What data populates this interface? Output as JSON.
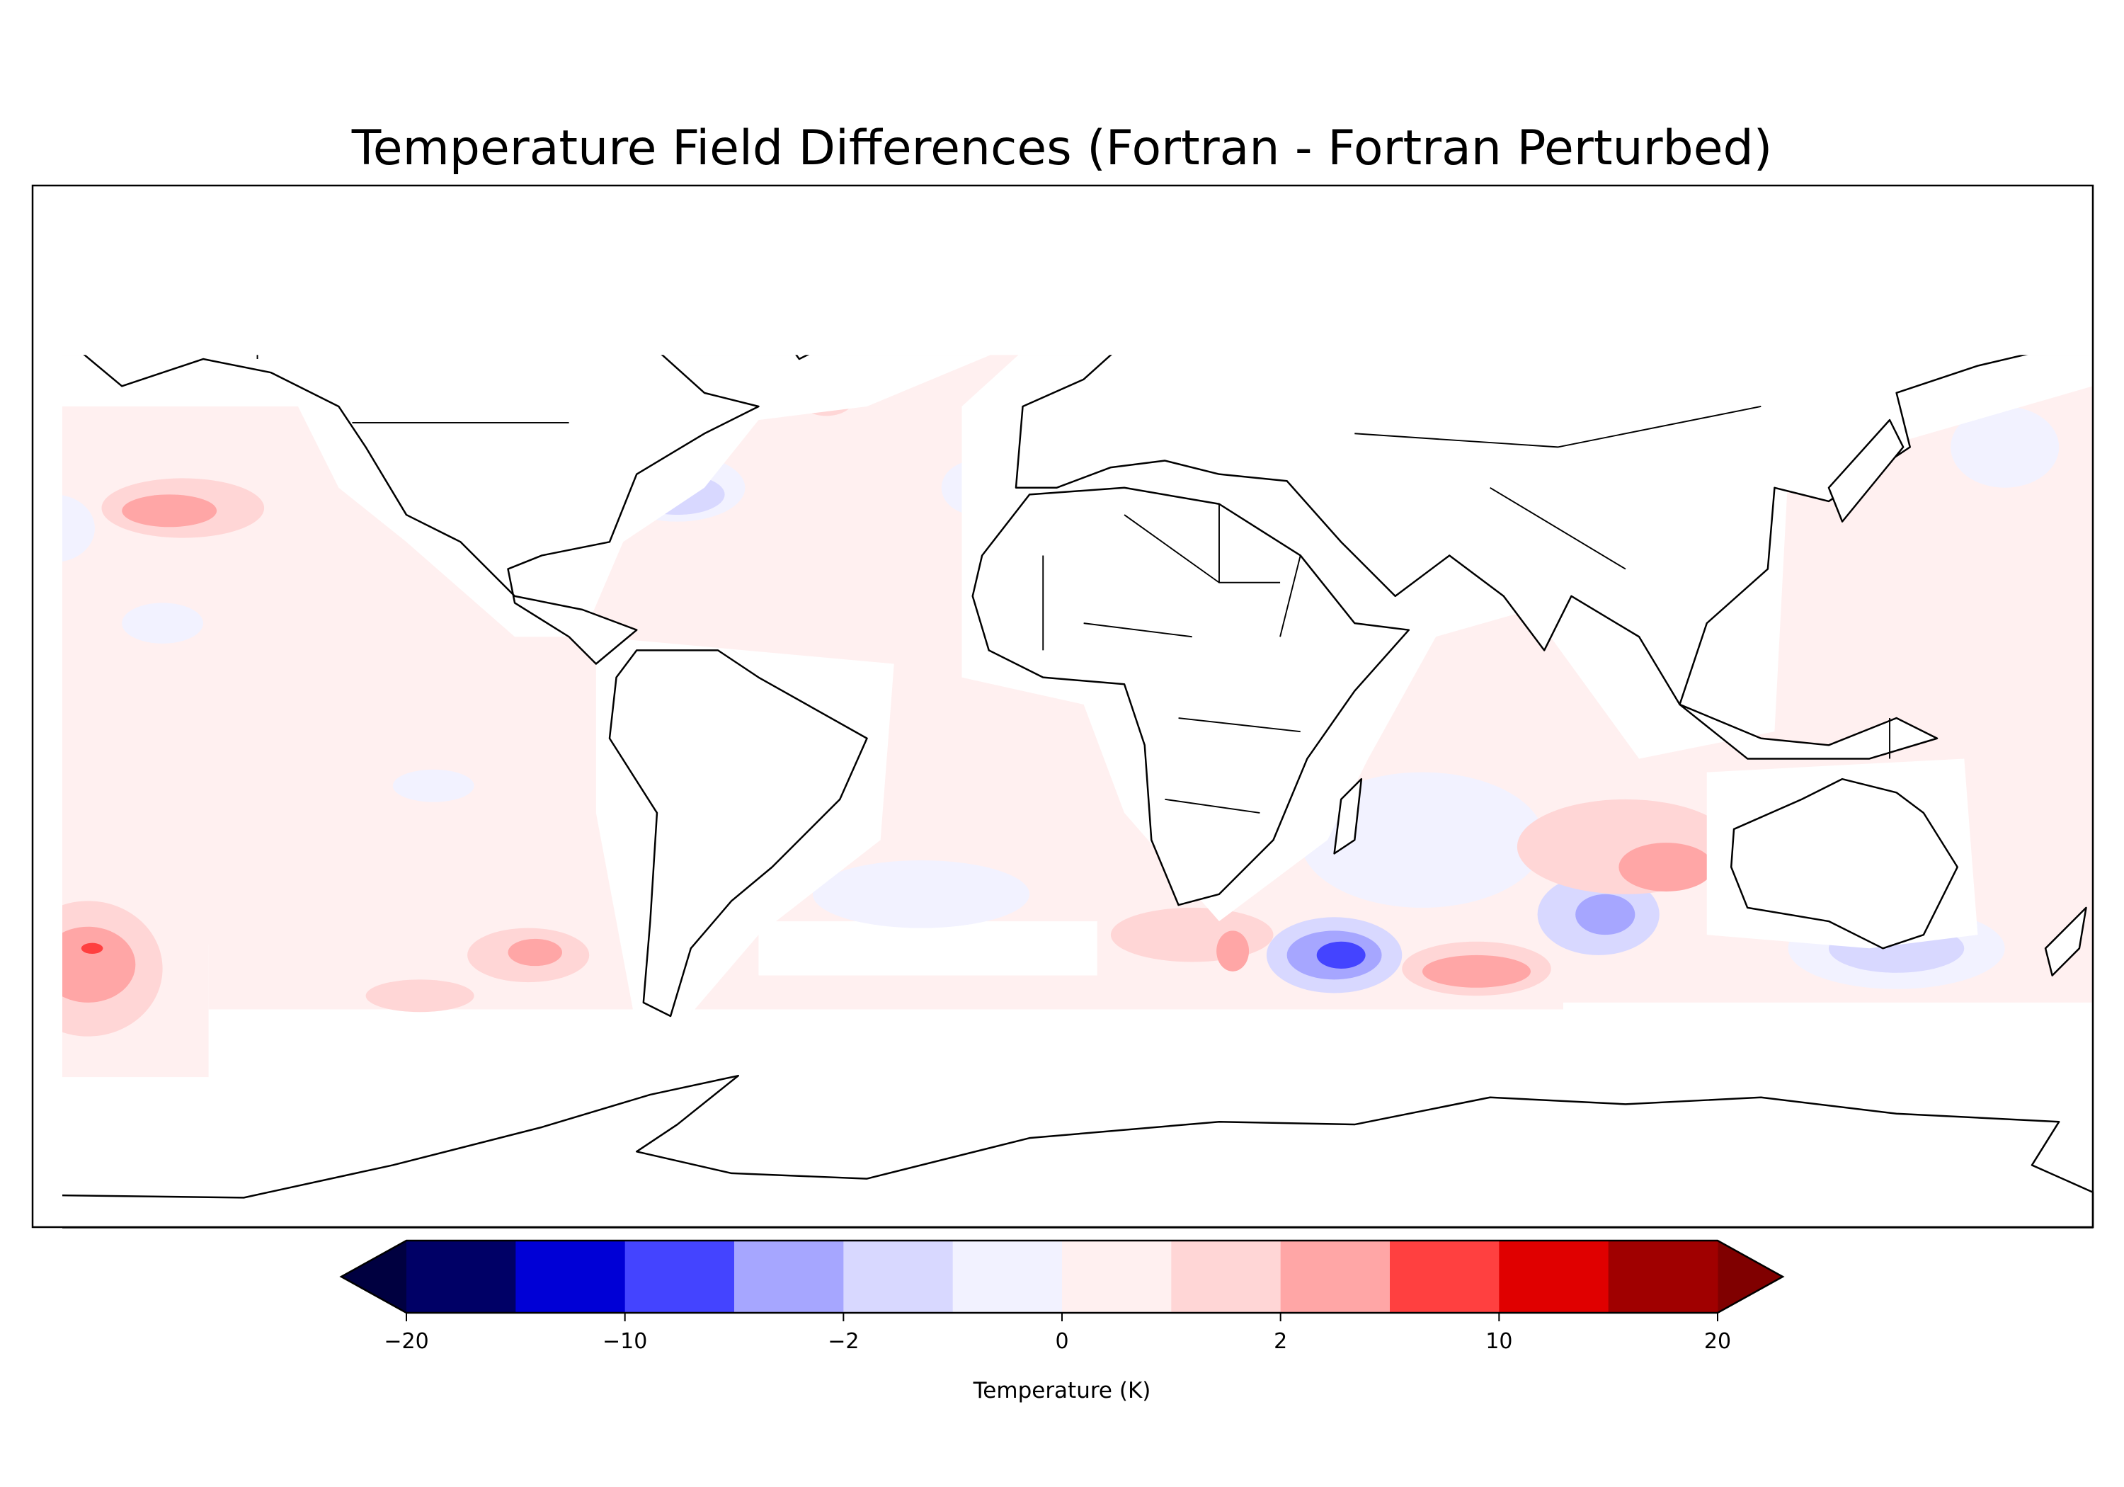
{
  "chart_data": {
    "type": "contour",
    "title": "Temperature Field Differences (Fortran - Fortran Perturbed)",
    "projection": "PlateCarree global map with coastlines and borders",
    "colorbar": {
      "label": "Temperature (K)",
      "orientation": "horizontal",
      "extend": "both",
      "levels": [
        -20,
        -15,
        -10,
        -5,
        -2,
        -1,
        0,
        1,
        2,
        5,
        10,
        15,
        20
      ],
      "colors": [
        "#000066",
        "#0000d6",
        "#4444ff",
        "#a6a6ff",
        "#d8d8ff",
        "#f2f2ff",
        "#fff0f0",
        "#ffd6d6",
        "#ffa6a6",
        "#ff4040",
        "#e00000",
        "#a00000"
      ],
      "under_color": "#000040",
      "over_color": "#800000",
      "ticks": [
        -20,
        -10,
        -2,
        0,
        2,
        10,
        20
      ],
      "tick_labels": [
        "−20",
        "−10",
        "−2",
        "0",
        "2",
        "10",
        "20"
      ]
    },
    "features": [
      {
        "region": "South Indian Ocean (south of Africa)",
        "value_range": [
          -10,
          -5
        ]
      },
      {
        "region": "Southern Ocean south of Indian Ocean",
        "value_range": [
          2,
          5
        ]
      },
      {
        "region": "South Pacific far west",
        "value_range": [
          5,
          10
        ]
      },
      {
        "region": "North Pacific near Hawaii",
        "value_range": [
          2,
          5
        ]
      },
      {
        "region": "South of Australia",
        "value_range": [
          -5,
          -2
        ]
      },
      {
        "region": "West of Australia",
        "value_range": [
          2,
          5
        ]
      },
      {
        "region": "Most ocean areas",
        "value_range": [
          -1,
          1
        ]
      }
    ]
  }
}
